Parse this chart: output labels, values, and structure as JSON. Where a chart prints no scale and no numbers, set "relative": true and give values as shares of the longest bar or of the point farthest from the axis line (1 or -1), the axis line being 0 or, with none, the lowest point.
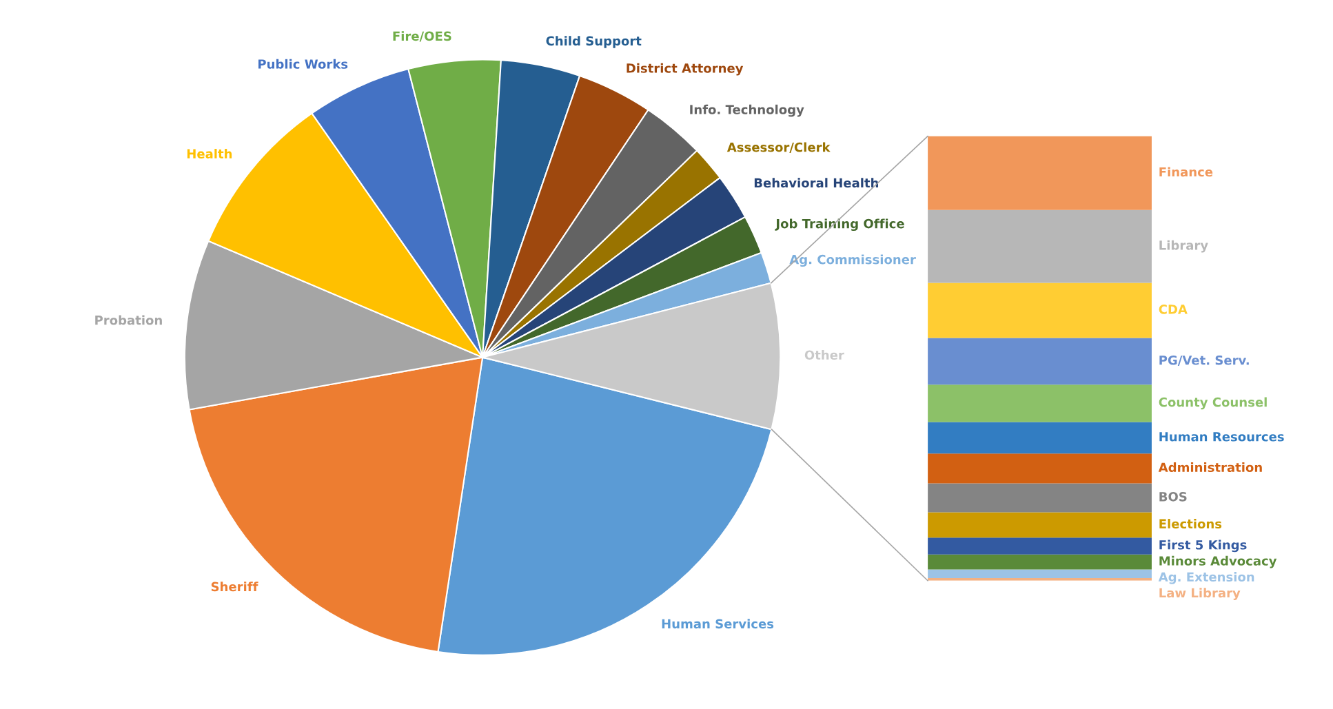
{
  "chart_data": [
    {
      "type": "pie",
      "categories": [
        "Human Services",
        "Sheriff",
        "Probation",
        "Health",
        "Public Works",
        "Fire/OES",
        "Child Support",
        "District Attorney",
        "Info. Technology",
        "Assessor/Clerk",
        "Behavioral Health",
        "Job Training Office",
        "Ag. Commissioner",
        "Other"
      ],
      "values": [
        23.5,
        19.8,
        9.2,
        8.9,
        5.7,
        5.0,
        4.3,
        4.1,
        3.4,
        1.9,
        2.5,
        2.1,
        1.7,
        7.9
      ],
      "colors": [
        "#5b9bd5",
        "#ed7d31",
        "#a5a5a5",
        "#ffc000",
        "#4472c4",
        "#70ad47",
        "#255e91",
        "#9e480e",
        "#636363",
        "#997300",
        "#264478",
        "#43682b",
        "#7cafdd",
        "#c9c9c9"
      ]
    },
    {
      "type": "bar",
      "stacked": true,
      "relative": true,
      "categories": [
        null
      ],
      "series": [
        {
          "name": "Law Library",
          "color": "#f4b183",
          "values": [
            0.006
          ]
        },
        {
          "name": "Ag. Extension",
          "color": "#9dc3e6",
          "values": [
            0.019
          ]
        },
        {
          "name": "Minors Advocacy",
          "color": "#5a8a39",
          "values": [
            0.034
          ]
        },
        {
          "name": "First 5 Kings",
          "color": "#335aa1",
          "values": [
            0.038
          ]
        },
        {
          "name": "Elections",
          "color": "#cc9a00",
          "values": [
            0.057
          ]
        },
        {
          "name": "BOS",
          "color": "#848484",
          "values": [
            0.065
          ]
        },
        {
          "name": "Administration",
          "color": "#d26012",
          "values": [
            0.067
          ]
        },
        {
          "name": "Human Resources",
          "color": "#327dc2",
          "values": [
            0.071
          ]
        },
        {
          "name": "County Counsel",
          "color": "#8cc168",
          "values": [
            0.084
          ]
        },
        {
          "name": "PG/Vet. Serv.",
          "color": "#698ed0",
          "values": [
            0.105
          ]
        },
        {
          "name": "CDA",
          "color": "#ffcd33",
          "values": [
            0.124
          ]
        },
        {
          "name": "Library",
          "color": "#b7b7b7",
          "values": [
            0.164
          ]
        },
        {
          "name": "Finance",
          "color": "#f1975a",
          "values": [
            0.166
          ]
        }
      ]
    }
  ]
}
